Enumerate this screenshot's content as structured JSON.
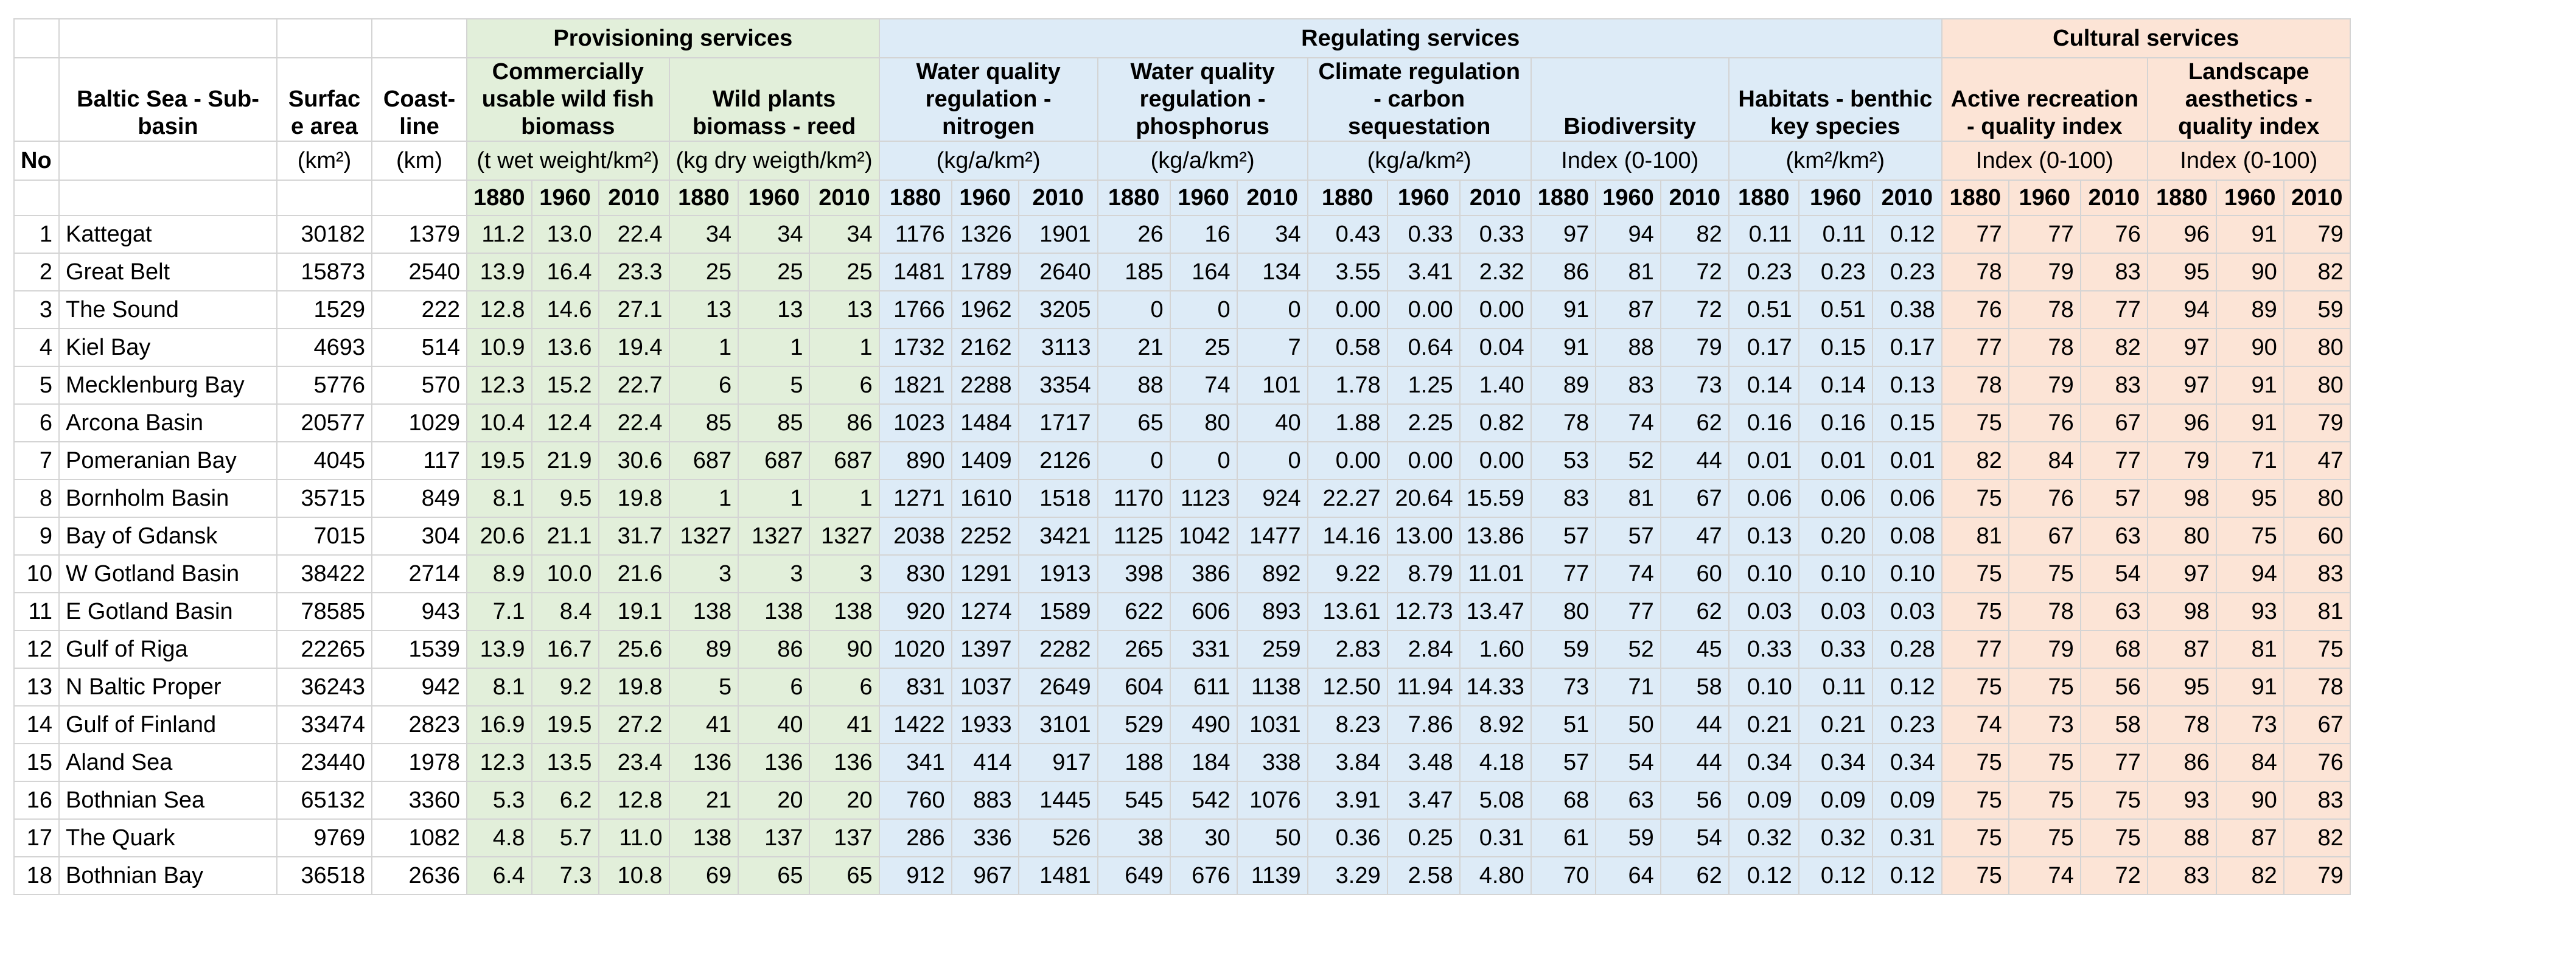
{
  "groups": {
    "provisioning": "Provisioning services",
    "regulating": "Regulating services",
    "cultural": "Cultural services"
  },
  "headers": {
    "no": "No",
    "basin": "Baltic Sea - Sub-basin",
    "surface": "Surfac e area",
    "surface_unit": "(km²)",
    "coast": "Coast-line",
    "coast_unit": "(km)",
    "services": [
      {
        "title": "Commercially usable wild fish biomass",
        "unit": "(t wet weight/km²)"
      },
      {
        "title": "Wild plants biomass - reed",
        "unit": "(kg dry weigth/km²)"
      },
      {
        "title": "Water quality regulation - nitrogen",
        "unit": "(kg/a/km²)"
      },
      {
        "title": "Water quality regulation - phosphorus",
        "unit": "(kg/a/km²)"
      },
      {
        "title": "Climate regulation - carbon sequestation",
        "unit": "(kg/a/km²)"
      },
      {
        "title": "Biodiversity",
        "unit": "Index (0-100)"
      },
      {
        "title": "Habitats - benthic key species",
        "unit": "(km²/km²)"
      },
      {
        "title": "Active recreation - quality index",
        "unit": "Index (0-100)"
      },
      {
        "title": "Landscape aesthetics - quality index",
        "unit": "Index (0-100)"
      }
    ],
    "years": [
      "1880",
      "1960",
      "2010"
    ]
  },
  "rows": [
    {
      "no": "1",
      "name": "Kattegat",
      "area": "30182",
      "coast": "1379",
      "v": [
        "11.2",
        "13.0",
        "22.4",
        "34",
        "34",
        "34",
        "1176",
        "1326",
        "1901",
        "26",
        "16",
        "34",
        "0.43",
        "0.33",
        "0.33",
        "97",
        "94",
        "82",
        "0.11",
        "0.11",
        "0.12",
        "77",
        "77",
        "76",
        "96",
        "91",
        "79"
      ]
    },
    {
      "no": "2",
      "name": "Great Belt",
      "area": "15873",
      "coast": "2540",
      "v": [
        "13.9",
        "16.4",
        "23.3",
        "25",
        "25",
        "25",
        "1481",
        "1789",
        "2640",
        "185",
        "164",
        "134",
        "3.55",
        "3.41",
        "2.32",
        "86",
        "81",
        "72",
        "0.23",
        "0.23",
        "0.23",
        "78",
        "79",
        "83",
        "95",
        "90",
        "82"
      ]
    },
    {
      "no": "3",
      "name": "The Sound",
      "area": "1529",
      "coast": "222",
      "v": [
        "12.8",
        "14.6",
        "27.1",
        "13",
        "13",
        "13",
        "1766",
        "1962",
        "3205",
        "0",
        "0",
        "0",
        "0.00",
        "0.00",
        "0.00",
        "91",
        "87",
        "72",
        "0.51",
        "0.51",
        "0.38",
        "76",
        "78",
        "77",
        "94",
        "89",
        "59"
      ]
    },
    {
      "no": "4",
      "name": "Kiel Bay",
      "area": "4693",
      "coast": "514",
      "v": [
        "10.9",
        "13.6",
        "19.4",
        "1",
        "1",
        "1",
        "1732",
        "2162",
        "3113",
        "21",
        "25",
        "7",
        "0.58",
        "0.64",
        "0.04",
        "91",
        "88",
        "79",
        "0.17",
        "0.15",
        "0.17",
        "77",
        "78",
        "82",
        "97",
        "90",
        "80"
      ]
    },
    {
      "no": "5",
      "name": "Mecklenburg Bay",
      "area": "5776",
      "coast": "570",
      "v": [
        "12.3",
        "15.2",
        "22.7",
        "6",
        "5",
        "6",
        "1821",
        "2288",
        "3354",
        "88",
        "74",
        "101",
        "1.78",
        "1.25",
        "1.40",
        "89",
        "83",
        "73",
        "0.14",
        "0.14",
        "0.13",
        "78",
        "79",
        "83",
        "97",
        "91",
        "80"
      ]
    },
    {
      "no": "6",
      "name": "Arcona Basin",
      "area": "20577",
      "coast": "1029",
      "v": [
        "10.4",
        "12.4",
        "22.4",
        "85",
        "85",
        "86",
        "1023",
        "1484",
        "1717",
        "65",
        "80",
        "40",
        "1.88",
        "2.25",
        "0.82",
        "78",
        "74",
        "62",
        "0.16",
        "0.16",
        "0.15",
        "75",
        "76",
        "67",
        "96",
        "91",
        "79"
      ]
    },
    {
      "no": "7",
      "name": "Pomeranian Bay",
      "area": "4045",
      "coast": "117",
      "v": [
        "19.5",
        "21.9",
        "30.6",
        "687",
        "687",
        "687",
        "890",
        "1409",
        "2126",
        "0",
        "0",
        "0",
        "0.00",
        "0.00",
        "0.00",
        "53",
        "52",
        "44",
        "0.01",
        "0.01",
        "0.01",
        "82",
        "84",
        "77",
        "79",
        "71",
        "47"
      ]
    },
    {
      "no": "8",
      "name": "Bornholm Basin",
      "area": "35715",
      "coast": "849",
      "v": [
        "8.1",
        "9.5",
        "19.8",
        "1",
        "1",
        "1",
        "1271",
        "1610",
        "1518",
        "1170",
        "1123",
        "924",
        "22.27",
        "20.64",
        "15.59",
        "83",
        "81",
        "67",
        "0.06",
        "0.06",
        "0.06",
        "75",
        "76",
        "57",
        "98",
        "95",
        "80"
      ]
    },
    {
      "no": "9",
      "name": "Bay of Gdansk",
      "area": "7015",
      "coast": "304",
      "v": [
        "20.6",
        "21.1",
        "31.7",
        "1327",
        "1327",
        "1327",
        "2038",
        "2252",
        "3421",
        "1125",
        "1042",
        "1477",
        "14.16",
        "13.00",
        "13.86",
        "57",
        "57",
        "47",
        "0.13",
        "0.20",
        "0.08",
        "81",
        "67",
        "63",
        "80",
        "75",
        "60"
      ]
    },
    {
      "no": "10",
      "name": "W Gotland Basin",
      "area": "38422",
      "coast": "2714",
      "v": [
        "8.9",
        "10.0",
        "21.6",
        "3",
        "3",
        "3",
        "830",
        "1291",
        "1913",
        "398",
        "386",
        "892",
        "9.22",
        "8.79",
        "11.01",
        "77",
        "74",
        "60",
        "0.10",
        "0.10",
        "0.10",
        "75",
        "75",
        "54",
        "97",
        "94",
        "83"
      ]
    },
    {
      "no": "11",
      "name": "E Gotland Basin",
      "area": "78585",
      "coast": "943",
      "v": [
        "7.1",
        "8.4",
        "19.1",
        "138",
        "138",
        "138",
        "920",
        "1274",
        "1589",
        "622",
        "606",
        "893",
        "13.61",
        "12.73",
        "13.47",
        "80",
        "77",
        "62",
        "0.03",
        "0.03",
        "0.03",
        "75",
        "78",
        "63",
        "98",
        "93",
        "81"
      ]
    },
    {
      "no": "12",
      "name": "Gulf of Riga",
      "area": "22265",
      "coast": "1539",
      "v": [
        "13.9",
        "16.7",
        "25.6",
        "89",
        "86",
        "90",
        "1020",
        "1397",
        "2282",
        "265",
        "331",
        "259",
        "2.83",
        "2.84",
        "1.60",
        "59",
        "52",
        "45",
        "0.33",
        "0.33",
        "0.28",
        "77",
        "79",
        "68",
        "87",
        "81",
        "75"
      ]
    },
    {
      "no": "13",
      "name": "N Baltic Proper",
      "area": "36243",
      "coast": "942",
      "v": [
        "8.1",
        "9.2",
        "19.8",
        "5",
        "6",
        "6",
        "831",
        "1037",
        "2649",
        "604",
        "611",
        "1138",
        "12.50",
        "11.94",
        "14.33",
        "73",
        "71",
        "58",
        "0.10",
        "0.11",
        "0.12",
        "75",
        "75",
        "56",
        "95",
        "91",
        "78"
      ]
    },
    {
      "no": "14",
      "name": "Gulf of Finland",
      "area": "33474",
      "coast": "2823",
      "v": [
        "16.9",
        "19.5",
        "27.2",
        "41",
        "40",
        "41",
        "1422",
        "1933",
        "3101",
        "529",
        "490",
        "1031",
        "8.23",
        "7.86",
        "8.92",
        "51",
        "50",
        "44",
        "0.21",
        "0.21",
        "0.23",
        "74",
        "73",
        "58",
        "78",
        "73",
        "67"
      ]
    },
    {
      "no": "15",
      "name": "Aland Sea",
      "area": "23440",
      "coast": "1978",
      "v": [
        "12.3",
        "13.5",
        "23.4",
        "136",
        "136",
        "136",
        "341",
        "414",
        "917",
        "188",
        "184",
        "338",
        "3.84",
        "3.48",
        "4.18",
        "57",
        "54",
        "44",
        "0.34",
        "0.34",
        "0.34",
        "75",
        "75",
        "77",
        "86",
        "84",
        "76"
      ]
    },
    {
      "no": "16",
      "name": "Bothnian Sea",
      "area": "65132",
      "coast": "3360",
      "v": [
        "5.3",
        "6.2",
        "12.8",
        "21",
        "20",
        "20",
        "760",
        "883",
        "1445",
        "545",
        "542",
        "1076",
        "3.91",
        "3.47",
        "5.08",
        "68",
        "63",
        "56",
        "0.09",
        "0.09",
        "0.09",
        "75",
        "75",
        "75",
        "93",
        "90",
        "83"
      ]
    },
    {
      "no": "17",
      "name": "The Quark",
      "area": "9769",
      "coast": "1082",
      "v": [
        "4.8",
        "5.7",
        "11.0",
        "138",
        "137",
        "137",
        "286",
        "336",
        "526",
        "38",
        "30",
        "50",
        "0.36",
        "0.25",
        "0.31",
        "61",
        "59",
        "54",
        "0.32",
        "0.32",
        "0.31",
        "75",
        "75",
        "75",
        "88",
        "87",
        "82"
      ]
    },
    {
      "no": "18",
      "name": "Bothnian Bay",
      "area": "36518",
      "coast": "2636",
      "v": [
        "6.4",
        "7.3",
        "10.8",
        "69",
        "65",
        "65",
        "912",
        "967",
        "1481",
        "649",
        "676",
        "1139",
        "3.29",
        "2.58",
        "4.80",
        "70",
        "64",
        "62",
        "0.12",
        "0.12",
        "0.12",
        "75",
        "74",
        "72",
        "83",
        "82",
        "79"
      ]
    }
  ]
}
